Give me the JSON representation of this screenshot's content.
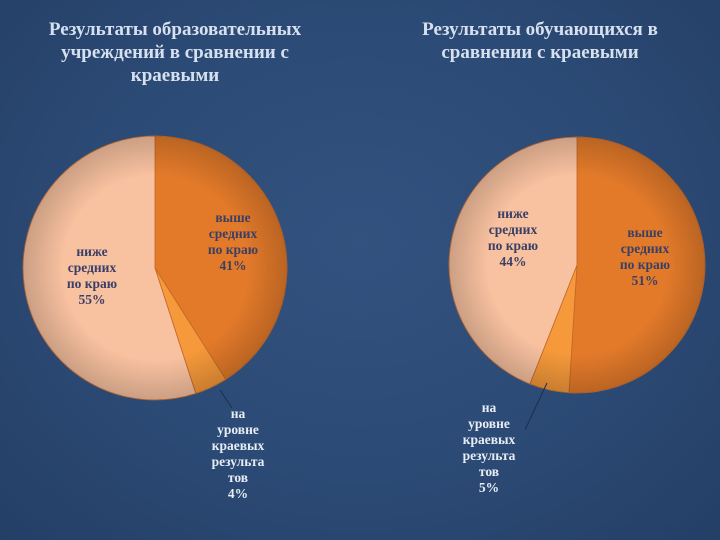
{
  "slide": {
    "left_title": "Результаты образовательных учреждений в сравнении с краевыми",
    "right_title": "Результаты обучающихся в сравнении с краевыми"
  },
  "colors": {
    "background": "#2b4a75",
    "above": "#e37a2a",
    "level": "#f5993a",
    "below": "#f8c1a0",
    "title_text": "#d7e0ee"
  },
  "chart_data": [
    {
      "type": "pie",
      "title": "Результаты образовательных учреждений в сравнении с краевыми",
      "slices": [
        {
          "label": "выше средних по краю 41%",
          "value": 41,
          "color": "#e37a2a",
          "label_lines": [
            "выше",
            "средних",
            "по краю",
            "41%"
          ]
        },
        {
          "label": "на уровне краевых результатов 4%",
          "value": 4,
          "color": "#f5993a",
          "label_lines": [
            "на",
            "уровне",
            "краевых",
            "результа",
            "тов",
            "4%"
          ]
        },
        {
          "label": "ниже средних по краю 55%",
          "value": 55,
          "color": "#f8c1a0",
          "label_lines": [
            "ниже",
            "средних",
            "по краю",
            "55%"
          ]
        }
      ]
    },
    {
      "type": "pie",
      "title": "Результаты обучающихся в сравнении с краевыми",
      "slices": [
        {
          "label": "выше средних по краю 51%",
          "value": 51,
          "color": "#e37a2a",
          "label_lines": [
            "выше",
            "средних",
            "по краю",
            "51%"
          ]
        },
        {
          "label": "на уровне краевых результатов 5%",
          "value": 5,
          "color": "#f5993a",
          "label_lines": [
            "на",
            "уровне",
            "краевых",
            "результа",
            "тов",
            "5%"
          ]
        },
        {
          "label": "ниже средних по краю 44%",
          "value": 44,
          "color": "#f8c1a0",
          "label_lines": [
            "ниже",
            "средних",
            "по краю",
            "44%"
          ]
        }
      ]
    }
  ]
}
